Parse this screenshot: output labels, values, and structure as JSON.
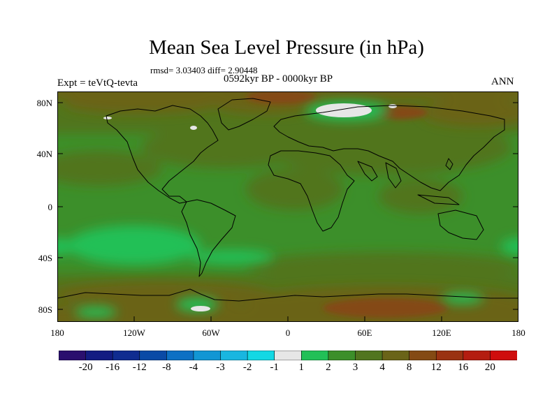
{
  "title": "Mean Sea Level Pressure (in hPa)",
  "stats": "rmsd= 3.03403   diff= 2.90448",
  "experiment": "Expt = teVtQ-tevta",
  "period": "0592kyr BP - 0000kyr BP",
  "season": "ANN",
  "lat_labels": [
    "80N",
    "40N",
    "0",
    "40S",
    "80S"
  ],
  "lon_labels": [
    "180",
    "120W",
    "60W",
    "0",
    "60E",
    "120E",
    "180"
  ],
  "colorbar": {
    "labels": [
      "-20",
      "-16",
      "-12",
      "-8",
      "-4",
      "-3",
      "-2",
      "-1",
      "1",
      "2",
      "3",
      "4",
      "8",
      "12",
      "16",
      "20"
    ],
    "colors": [
      "#2a0f6e",
      "#131c82",
      "#102c90",
      "#0a4aa6",
      "#0d70c4",
      "#1296d4",
      "#19b6e0",
      "#13d8e4",
      "#e6e6e6",
      "#22c057",
      "#3c8f2a",
      "#51751f",
      "#6a6418",
      "#844a14",
      "#9a3212",
      "#b41d10",
      "#cf0d0d"
    ]
  }
}
